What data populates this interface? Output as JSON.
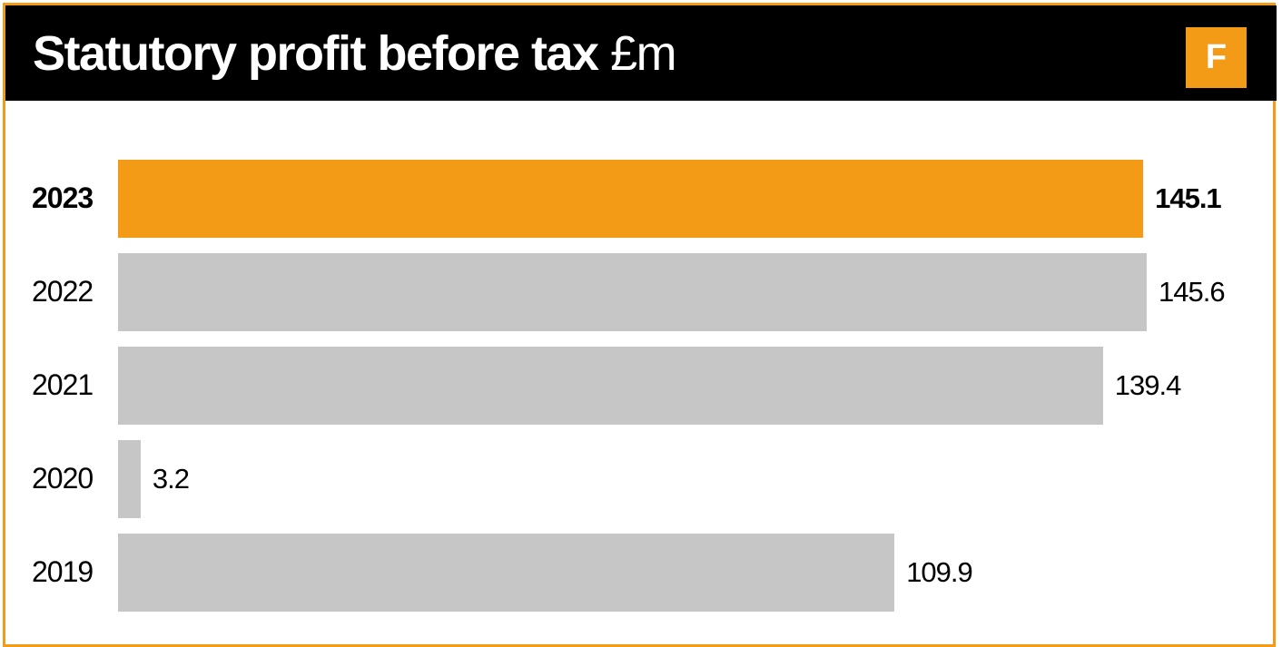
{
  "header": {
    "title": "Statutory profit before tax",
    "unit": "£m",
    "badge": "F"
  },
  "colors": {
    "highlight": "#f39a17",
    "default": "#c6c6c6",
    "header_bg": "#000000"
  },
  "chart_data": {
    "type": "bar",
    "orientation": "horizontal",
    "title": "Statutory profit before tax £m",
    "categories": [
      "2023",
      "2022",
      "2021",
      "2020",
      "2019"
    ],
    "values": [
      145.1,
      145.6,
      139.4,
      3.2,
      109.9
    ],
    "value_labels": [
      "145.1",
      "145.6",
      "139.4",
      "3.2",
      "109.9"
    ],
    "highlight": "2023",
    "xlabel": "",
    "ylabel": "",
    "xlim": [
      0,
      145.6
    ],
    "grid": false
  }
}
